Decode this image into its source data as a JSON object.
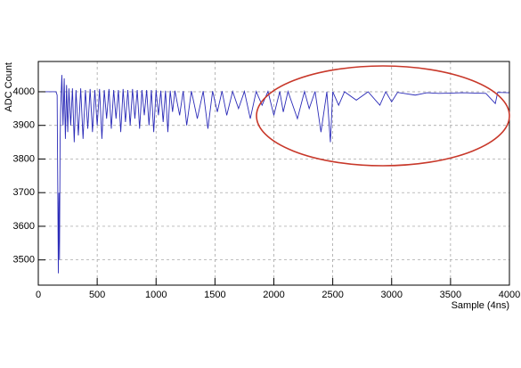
{
  "chart_data": {
    "type": "line",
    "xlabel": "Sample (4ns)",
    "ylabel": "ADC Count",
    "x": [
      0,
      150,
      160,
      170,
      175,
      180,
      185,
      190,
      200,
      210,
      220,
      230,
      240,
      250,
      260,
      275,
      290,
      305,
      320,
      340,
      360,
      380,
      400,
      420,
      440,
      460,
      480,
      500,
      520,
      540,
      560,
      580,
      600,
      620,
      640,
      660,
      680,
      700,
      720,
      740,
      760,
      780,
      800,
      820,
      840,
      860,
      880,
      900,
      920,
      940,
      960,
      980,
      1000,
      1020,
      1040,
      1060,
      1080,
      1100,
      1120,
      1140,
      1160,
      1200,
      1230,
      1260,
      1300,
      1350,
      1400,
      1440,
      1480,
      1520,
      1560,
      1600,
      1650,
      1700,
      1750,
      1800,
      1850,
      1900,
      1950,
      2000,
      2050,
      2080,
      2120,
      2200,
      2260,
      2300,
      2350,
      2400,
      2450,
      2480,
      2500,
      2550,
      2600,
      2700,
      2800,
      2900,
      2950,
      3000,
      3050,
      3200,
      3300,
      3400,
      3600,
      3800,
      3880,
      3900,
      4000
    ],
    "values": [
      4000,
      4000,
      3990,
      3460,
      3700,
      3500,
      3850,
      3950,
      4050,
      3900,
      4040,
      3860,
      4020,
      3880,
      4010,
      3900,
      4010,
      3850,
      4005,
      3870,
      4010,
      3860,
      4005,
      3890,
      4008,
      3880,
      4005,
      3900,
      4008,
      3860,
      4005,
      3920,
      4008,
      3890,
      4005,
      3920,
      4005,
      3880,
      4008,
      3910,
      4005,
      3900,
      4008,
      3920,
      4005,
      3890,
      4005,
      3930,
      4005,
      3900,
      4005,
      3880,
      4005,
      3930,
      4003,
      3910,
      4003,
      3880,
      4003,
      3940,
      4003,
      3930,
      4002,
      3900,
      4002,
      3920,
      4002,
      3890,
      4002,
      3940,
      4002,
      3930,
      4001,
      3950,
      4001,
      3920,
      4001,
      3960,
      4001,
      3930,
      4001,
      3940,
      4001,
      3920,
      4001,
      3950,
      4001,
      3880,
      4000,
      3850,
      4000,
      3960,
      4000,
      3975,
      4000,
      3960,
      4000,
      3970,
      3998,
      3990,
      3997,
      3995,
      3997,
      3995,
      3965,
      3998,
      3997
    ],
    "color": "#2b2bb8",
    "xlim": [
      0,
      4000
    ],
    "xticks": [
      0,
      500,
      1000,
      1500,
      2000,
      2500,
      3000,
      3500,
      4000
    ],
    "ylim": [
      3425,
      4090
    ],
    "yticks": [
      3500,
      3600,
      3700,
      3800,
      3900,
      4000
    ],
    "grid": true
  }
}
